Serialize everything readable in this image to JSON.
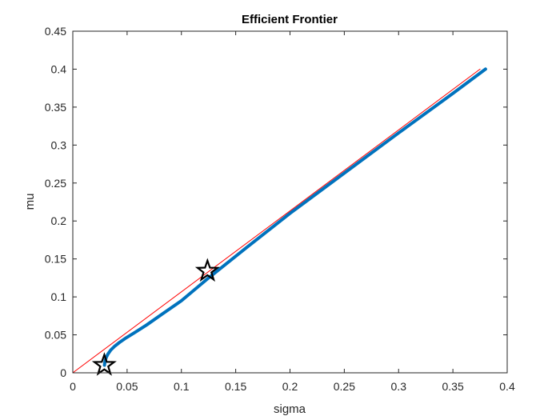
{
  "chart_data": {
    "type": "line",
    "title": "Efficient Frontier",
    "xlabel": "sigma",
    "ylabel": "mu",
    "xlim": [
      0,
      0.4
    ],
    "ylim": [
      0,
      0.45
    ],
    "xticks": [
      0,
      0.05,
      0.1,
      0.15,
      0.2,
      0.25,
      0.3,
      0.35,
      0.4
    ],
    "xtick_labels": [
      "0",
      "0.05",
      "0.1",
      "0.15",
      "0.2",
      "0.25",
      "0.3",
      "0.35",
      "0.4"
    ],
    "yticks": [
      0,
      0.05,
      0.1,
      0.15,
      0.2,
      0.25,
      0.3,
      0.35,
      0.4,
      0.45
    ],
    "ytick_labels": [
      "0",
      "0.05",
      "0.1",
      "0.15",
      "0.2",
      "0.25",
      "0.3",
      "0.35",
      "0.4",
      "0.45"
    ],
    "grid": false,
    "series": [
      {
        "kind": "frontier-curve",
        "color": "#0072BD",
        "x": [
          0.0292,
          0.0295,
          0.03,
          0.031,
          0.0325,
          0.035,
          0.0385,
          0.043,
          0.049,
          0.057,
          0.068,
          0.082,
          0.1,
          0.125,
          0.16,
          0.2,
          0.25,
          0.3,
          0.35,
          0.38
        ],
        "y": [
          0.01,
          0.0135,
          0.017,
          0.021,
          0.025,
          0.03,
          0.035,
          0.04,
          0.046,
          0.053,
          0.063,
          0.077,
          0.095,
          0.125,
          0.165,
          0.21,
          0.263,
          0.316,
          0.368,
          0.4
        ]
      },
      {
        "kind": "capital-market-line",
        "color": "#FF0000",
        "x": [
          0,
          0.375
        ],
        "y": [
          0,
          0.4
        ]
      }
    ],
    "markers": [
      {
        "kind": "min-variance-portfolio",
        "symbol": "pentagram",
        "x": 0.029,
        "y": 0.01
      },
      {
        "kind": "tangency-portfolio",
        "symbol": "pentagram",
        "x": 0.124,
        "y": 0.134
      }
    ]
  }
}
